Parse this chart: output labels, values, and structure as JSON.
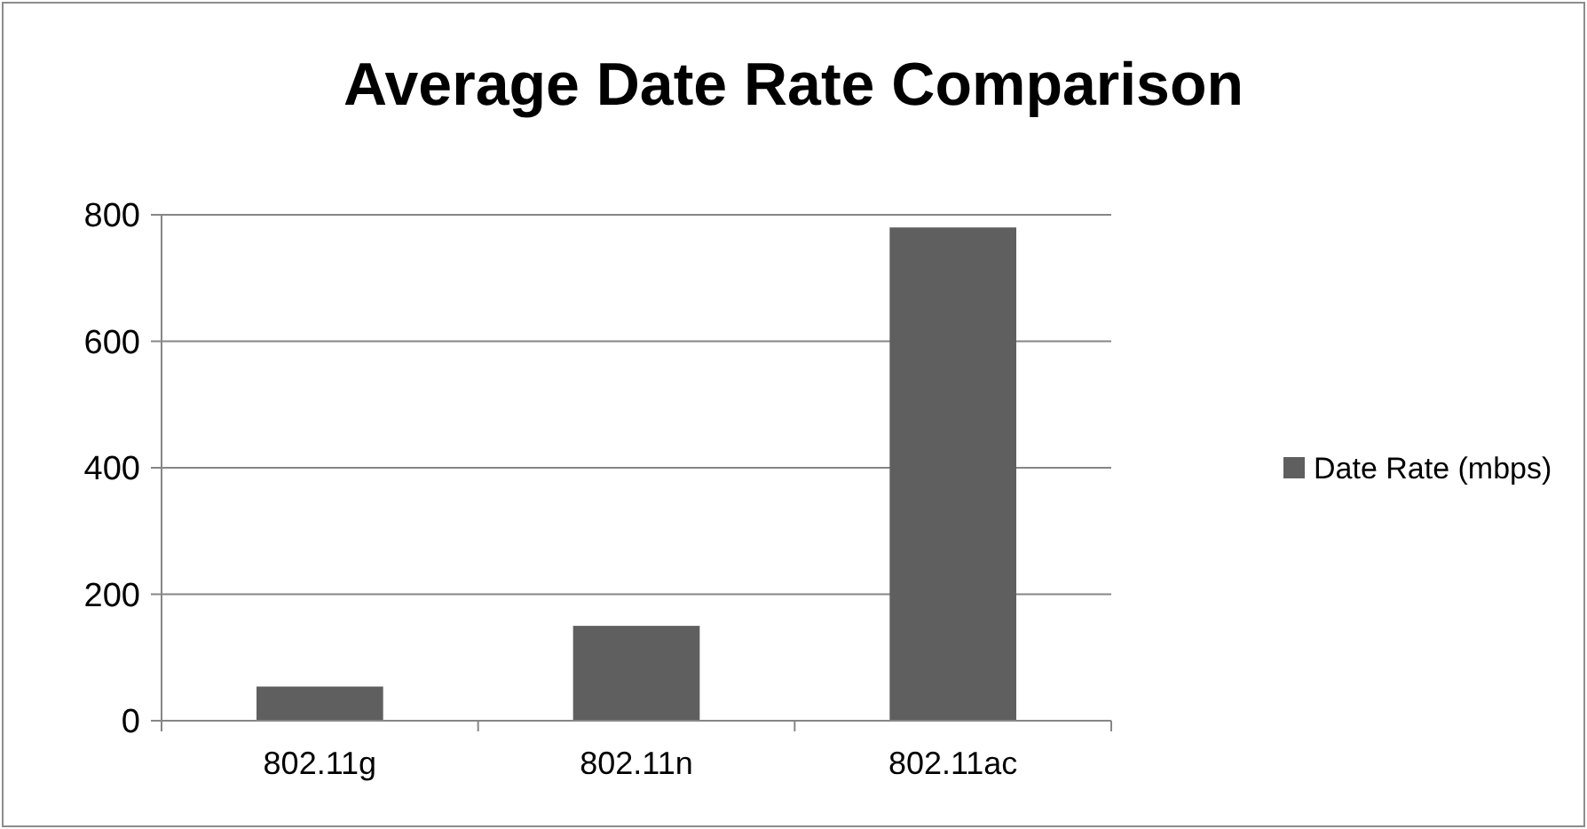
{
  "chart_data": {
    "type": "bar",
    "title": "Average Date Rate Comparison",
    "categories": [
      "802.11g",
      "802.11n",
      "802.11ac"
    ],
    "series": [
      {
        "name": "Date Rate (mbps)",
        "color": "#5f5f5f",
        "values": [
          54,
          150,
          780
        ]
      }
    ],
    "ylim": [
      0,
      800
    ],
    "yticks": [
      0,
      200,
      400,
      600,
      800
    ],
    "grid": "y",
    "legend": "right"
  }
}
